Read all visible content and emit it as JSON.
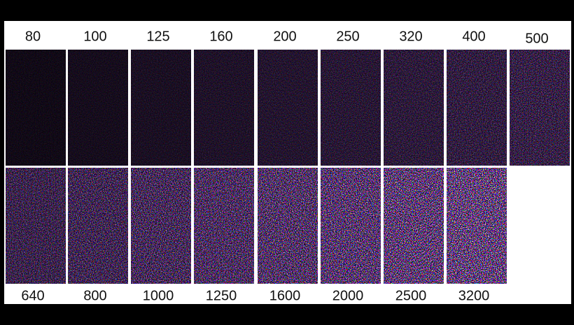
{
  "tiles": [
    {
      "label": "80"
    },
    {
      "label": "100"
    },
    {
      "label": "125"
    },
    {
      "label": "160"
    },
    {
      "label": "200"
    },
    {
      "label": "250"
    },
    {
      "label": "320"
    },
    {
      "label": "400"
    },
    {
      "label": "500"
    },
    {
      "label": "640"
    },
    {
      "label": "800"
    },
    {
      "label": "1000"
    },
    {
      "label": "1250"
    },
    {
      "label": "1600"
    },
    {
      "label": "2000"
    },
    {
      "label": "2500"
    },
    {
      "label": "3200"
    }
  ]
}
